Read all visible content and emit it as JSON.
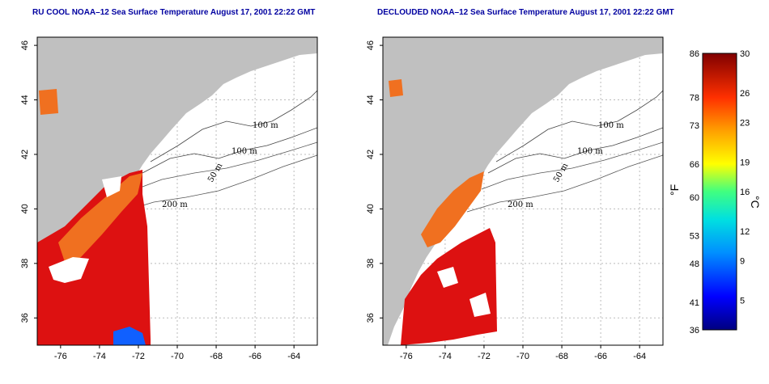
{
  "panels": [
    {
      "title": "RU COOL NOAA–12 Sea Surface Temperature August 17, 2001 22:22 GMT",
      "mode": "raw"
    },
    {
      "title": "DECLOUDED NOAA–12 Sea Surface Temperature August 17, 2001 22:22 GMT",
      "mode": "declouded"
    }
  ],
  "axes": {
    "lon_ticks": [
      "-76",
      "-74",
      "-72",
      "-70",
      "-68",
      "-66",
      "-64"
    ],
    "lat_ticks": [
      "36",
      "38",
      "40",
      "42",
      "44",
      "46"
    ],
    "lon_range": [
      -77.2,
      -62.8
    ],
    "lat_range": [
      35.0,
      46.3
    ]
  },
  "contours": [
    "100 m",
    "100 m",
    "50 m",
    "200 m",
    "50 m",
    "200 m"
  ],
  "colorbar": {
    "fahrenheit_ticks": [
      "86",
      "78",
      "73",
      "66",
      "60",
      "53",
      "48",
      "41",
      "36"
    ],
    "celsius_ticks": [
      "30",
      "26",
      "23",
      "19",
      "16",
      "12",
      "9",
      "5"
    ],
    "fahrenheit_unit": "°F",
    "celsius_unit": "°C",
    "range_c": [
      2,
      30
    ]
  },
  "colors": {
    "land": "#c0c0c0",
    "title": "#0000a0",
    "grid": "#bbbbbb",
    "warm": "#dd1111",
    "hot": "#c40000",
    "mid": "#f07020",
    "cool": "#1060ff"
  }
}
